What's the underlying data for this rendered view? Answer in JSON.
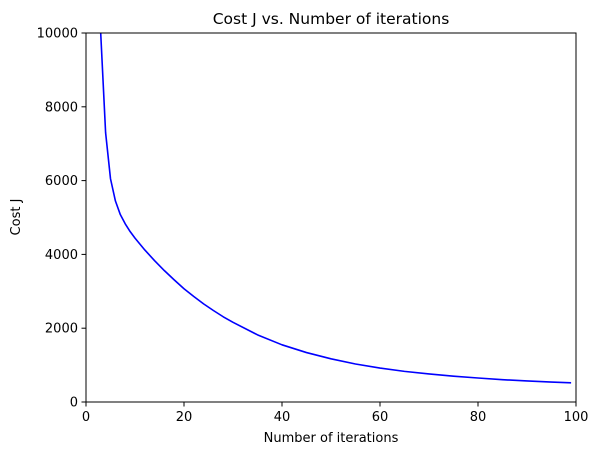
{
  "chart_data": {
    "type": "line",
    "title": "Cost J vs. Number of iterations",
    "xlabel": "Number of iterations",
    "ylabel": "Cost J",
    "xlim": [
      0,
      100
    ],
    "ylim": [
      0,
      10000
    ],
    "xticks": [
      "0",
      "20",
      "40",
      "60",
      "80",
      "100"
    ],
    "yticks": [
      "0",
      "2000",
      "4000",
      "6000",
      "8000",
      "10000"
    ],
    "grid": false,
    "legend": "none",
    "series": [
      {
        "color": "#0000ff",
        "x": [
          3,
          4,
          5,
          6,
          7,
          8,
          9,
          10,
          12,
          14,
          16,
          18,
          20,
          22,
          24,
          26,
          28,
          30,
          35,
          40,
          45,
          50,
          55,
          60,
          65,
          70,
          75,
          80,
          85,
          90,
          95,
          99
        ],
        "y": [
          10000,
          7300,
          6050,
          5450,
          5080,
          4830,
          4620,
          4440,
          4120,
          3830,
          3560,
          3310,
          3070,
          2860,
          2660,
          2480,
          2310,
          2160,
          1820,
          1550,
          1340,
          1170,
          1030,
          920,
          830,
          760,
          700,
          650,
          605,
          570,
          540,
          520
        ]
      }
    ]
  }
}
